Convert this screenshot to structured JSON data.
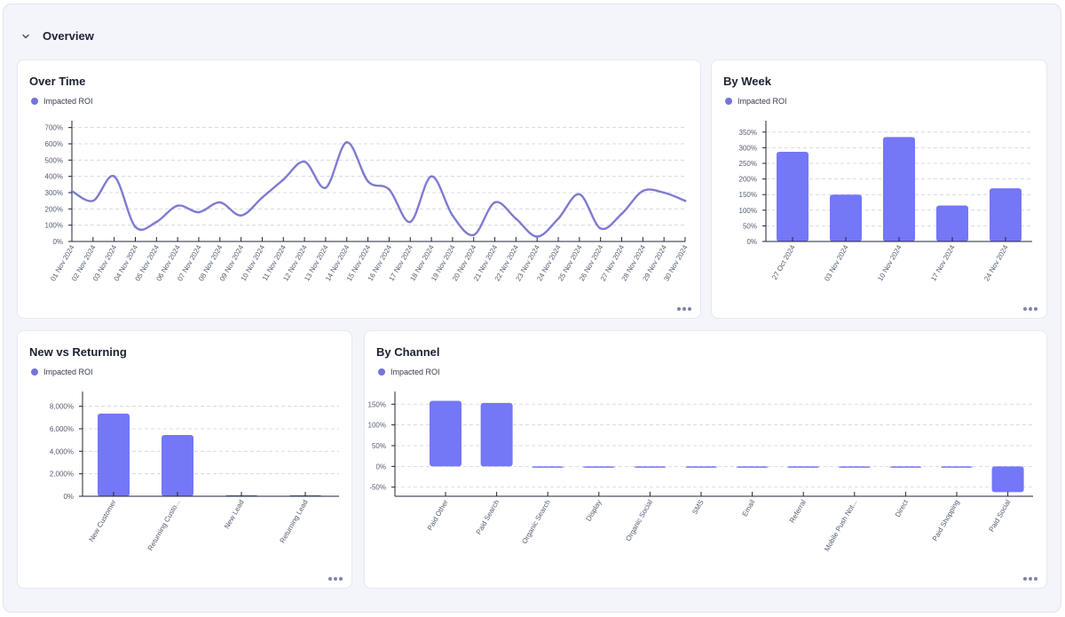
{
  "section": {
    "title": "Overview"
  },
  "colors": {
    "accent": "#7474dd",
    "bar": "#7477f6",
    "line": "#7e7bd0"
  },
  "over_time": {
    "title": "Over Time",
    "legend": "Impacted ROI",
    "chart_data": {
      "type": "line",
      "series": [
        {
          "name": "Impacted ROI",
          "values": [
            310,
            250,
            400,
            90,
            120,
            220,
            180,
            240,
            160,
            270,
            380,
            490,
            330,
            610,
            370,
            320,
            120,
            400,
            160,
            40,
            240,
            140,
            30,
            140,
            290,
            80,
            170,
            310,
            300,
            250
          ]
        }
      ],
      "categories": [
        "01 Nov 2024",
        "02 Nov 2024",
        "03 Nov 2024",
        "04 Nov 2024",
        "05 Nov 2024",
        "06 Nov 2024",
        "07 Nov 2024",
        "08 Nov 2024",
        "09 Nov 2024",
        "10 Nov 2024",
        "11 Nov 2024",
        "12 Nov 2024",
        "13 Nov 2024",
        "14 Nov 2024",
        "15 Nov 2024",
        "16 Nov 2024",
        "17 Nov 2024",
        "18 Nov 2024",
        "19 Nov 2024",
        "20 Nov 2024",
        "21 Nov 2024",
        "22 Nov 2024",
        "23 Nov 2024",
        "24 Nov 2024",
        "25 Nov 2024",
        "26 Nov 2024",
        "27 Nov 2024",
        "28 Nov 2024",
        "29 Nov 2024",
        "30 Nov 2024"
      ],
      "yticks": [
        0,
        100,
        200,
        300,
        400,
        500,
        600,
        700
      ],
      "ytick_labels": [
        "0%",
        "100%",
        "200%",
        "300%",
        "400%",
        "500%",
        "600%",
        "700%"
      ],
      "ylim": [
        0,
        720
      ],
      "grid": true
    }
  },
  "by_week": {
    "title": "By Week",
    "legend": "Impacted ROI",
    "chart_data": {
      "type": "bar",
      "categories": [
        "27 Oct 2024",
        "03 Nov 2024",
        "10 Nov 2024",
        "17 Nov 2024",
        "24 Nov 2024"
      ],
      "series": [
        {
          "name": "Impacted ROI",
          "values": [
            287,
            150,
            334,
            115,
            170
          ]
        }
      ],
      "yticks": [
        0,
        50,
        100,
        150,
        200,
        250,
        300,
        350
      ],
      "ytick_labels": [
        "0%",
        "50%",
        "100%",
        "150%",
        "200%",
        "250%",
        "300%",
        "350%"
      ],
      "ylim": [
        0,
        375
      ],
      "grid": true
    }
  },
  "new_vs_returning": {
    "title": "New vs Returning",
    "legend": "Impacted ROI",
    "chart_data": {
      "type": "bar",
      "categories": [
        "New Customer",
        "Returning Custo...",
        "New Lead",
        "Returning Lead"
      ],
      "series": [
        {
          "name": "Impacted ROI",
          "values": [
            7350,
            5450,
            100,
            100
          ]
        }
      ],
      "yticks": [
        0,
        2000,
        4000,
        6000,
        8000
      ],
      "ytick_labels": [
        "0%",
        "2,000%",
        "4,000%",
        "6,000%",
        "8,000%"
      ],
      "ylim": [
        0,
        9000
      ],
      "grid": true
    }
  },
  "by_channel": {
    "title": "By Channel",
    "legend": "Impacted ROI",
    "chart_data": {
      "type": "bar",
      "categories": [
        "Paid Other",
        "Paid Search",
        "Organic Search",
        "Display",
        "Organic Social",
        "SMS",
        "Email",
        "Referral",
        "Mobile Push Not...",
        "Direct",
        "Paid Shopping",
        "Paid Social"
      ],
      "series": [
        {
          "name": "Impacted ROI",
          "values": [
            158,
            153,
            0,
            0,
            0,
            0,
            0,
            0,
            0,
            0,
            0,
            -62
          ]
        }
      ],
      "yticks": [
        -50,
        0,
        50,
        100,
        150
      ],
      "ytick_labels": [
        "-50%",
        "0%",
        "50%",
        "100%",
        "150%"
      ],
      "ylim": [
        -72,
        172
      ],
      "grid": true
    }
  }
}
